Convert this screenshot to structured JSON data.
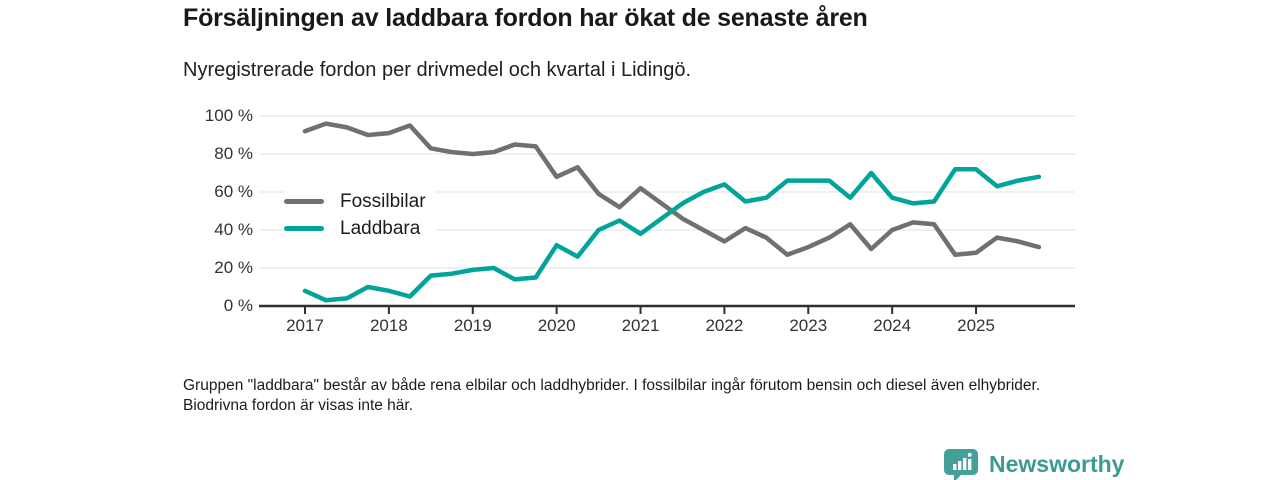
{
  "header": {
    "title": "Försäljningen av laddbara fordon har ökat de senaste åren",
    "subtitle": "Nyregistrerade fordon per drivmedel och kvartal i Lidingö."
  },
  "footnote": "Gruppen \"laddbara\" består av både rena elbilar och laddhybrider. I fossilbilar ingår förutom bensin och diesel även elhybrider. Biodrivna fordon är visas inte här.",
  "logo": {
    "name": "Newsworthy",
    "icon": "newsworthy-bubble-barchart-icon",
    "color": "#3d9a93"
  },
  "colors": {
    "background": "#ffffff",
    "grid": "#e0e0e0",
    "axis": "#2f2f2f",
    "tick_label": "#333333",
    "text": "#1c1c1c",
    "fossil_gray": "#6f6f74",
    "laddbara_teal": "#00a49a"
  },
  "chart_data": {
    "type": "line",
    "title": "Försäljningen av laddbara fordon har ökat de senaste åren",
    "subtitle": "Nyregistrerade fordon per drivmedel och kvartal i Lidingö.",
    "x_unit": "quarter",
    "quarters": [
      "2017-Q1",
      "2017-Q2",
      "2017-Q3",
      "2017-Q4",
      "2018-Q1",
      "2018-Q2",
      "2018-Q3",
      "2018-Q4",
      "2019-Q1",
      "2019-Q2",
      "2019-Q3",
      "2019-Q4",
      "2020-Q1",
      "2020-Q2",
      "2020-Q3",
      "2020-Q4",
      "2021-Q1",
      "2021-Q2",
      "2021-Q3",
      "2021-Q4",
      "2022-Q1",
      "2022-Q2",
      "2022-Q3",
      "2022-Q4",
      "2023-Q1",
      "2023-Q2",
      "2023-Q3",
      "2023-Q4",
      "2024-Q1",
      "2024-Q2",
      "2024-Q3",
      "2024-Q4",
      "2025-Q1",
      "2025-Q2",
      "2025-Q3",
      "2025-Q4"
    ],
    "x_tick_labels": [
      "2017",
      "2018",
      "2019",
      "2020",
      "2021",
      "2022",
      "2023",
      "2024",
      "2025"
    ],
    "y_ticks": [
      0,
      20,
      40,
      60,
      80,
      100
    ],
    "y_tick_format": "{v} %",
    "ylim": [
      0,
      100
    ],
    "grid": "horizontal",
    "legend_position": "inside-top-left",
    "series": [
      {
        "id": "fossilbilar",
        "name": "Fossilbilar",
        "color": "#6f6f74",
        "values": [
          92,
          96,
          94,
          90,
          91,
          95,
          83,
          81,
          80,
          81,
          85,
          84,
          68,
          73,
          59,
          52,
          62,
          54,
          46,
          40,
          34,
          41,
          36,
          27,
          31,
          36,
          43,
          30,
          40,
          44,
          43,
          27,
          28,
          36,
          34,
          31
        ]
      },
      {
        "id": "laddbara",
        "name": "Laddbara",
        "color": "#00a49a",
        "values": [
          8,
          3,
          4,
          10,
          8,
          5,
          16,
          17,
          19,
          20,
          14,
          15,
          32,
          26,
          40,
          45,
          38,
          46,
          54,
          60,
          64,
          55,
          57,
          66,
          66,
          66,
          57,
          70,
          57,
          54,
          55,
          72,
          72,
          63,
          66,
          68
        ]
      }
    ]
  }
}
